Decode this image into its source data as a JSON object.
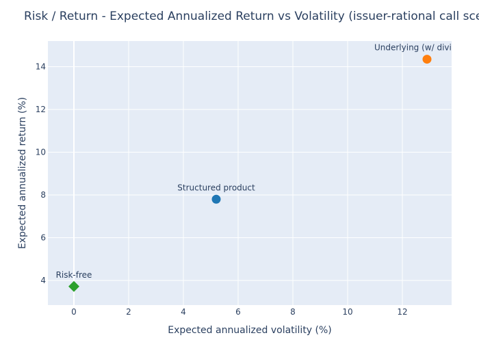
{
  "chart_data": {
    "type": "scatter",
    "title": "Risk / Return - Expected Annualized Return vs Volatility (issuer-rational call scenario)",
    "xlabel": "Expected annualized volatility (%)",
    "ylabel": "Expected annualized return (%)",
    "xlim": [
      -0.95,
      13.8
    ],
    "ylim": [
      2.85,
      15.2
    ],
    "xticks": [
      0,
      2,
      4,
      6,
      8,
      10,
      12
    ],
    "yticks": [
      4,
      6,
      8,
      10,
      12,
      14
    ],
    "grid": true,
    "legend": "none",
    "points": [
      {
        "label": "Underlying (w/ dividends)",
        "x": 12.9,
        "y": 14.35,
        "color": "#ff7f0e",
        "marker": "circle"
      },
      {
        "label": "Structured product",
        "x": 5.2,
        "y": 7.8,
        "color": "#1f77b4",
        "marker": "circle"
      },
      {
        "label": "Risk-free",
        "x": 0.0,
        "y": 3.72,
        "color": "#2ca02c",
        "marker": "diamond"
      }
    ]
  },
  "colors": {
    "plot_bg": "#e5ecf6",
    "grid": "#ffffff",
    "text": "#2a3f5f"
  }
}
